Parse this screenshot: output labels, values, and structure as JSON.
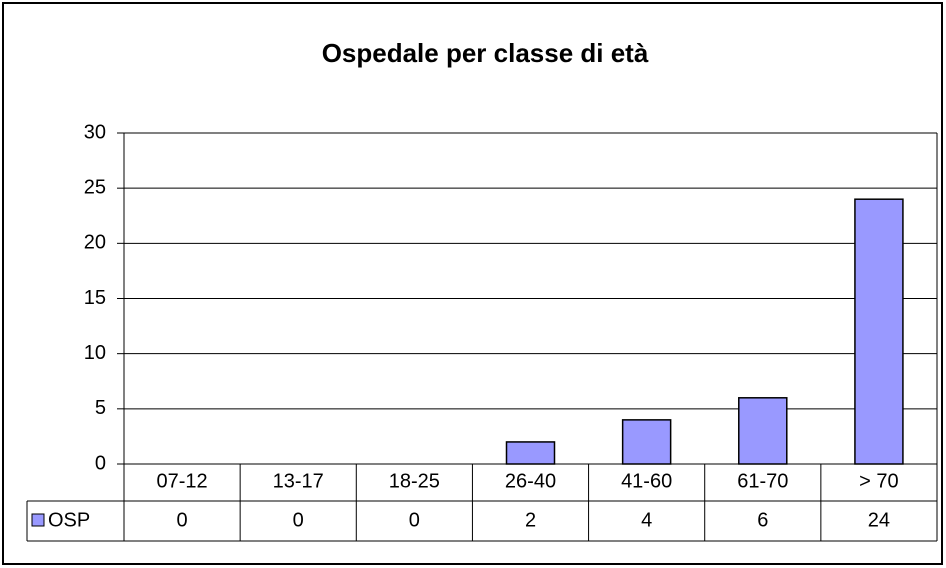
{
  "chart_data": {
    "type": "bar",
    "title": "Ospedale per classe di età",
    "categories": [
      "07-12",
      "13-17",
      "18-25",
      "26-40",
      "41-60",
      "61-70",
      "> 70"
    ],
    "series": [
      {
        "name": "OSP",
        "color": "#9999ff",
        "values": [
          0,
          0,
          0,
          2,
          4,
          6,
          24
        ]
      }
    ],
    "ylim": [
      0,
      30
    ],
    "yticks": [
      0,
      5,
      10,
      15,
      20,
      25,
      30
    ],
    "grid": true,
    "data_table": true
  }
}
